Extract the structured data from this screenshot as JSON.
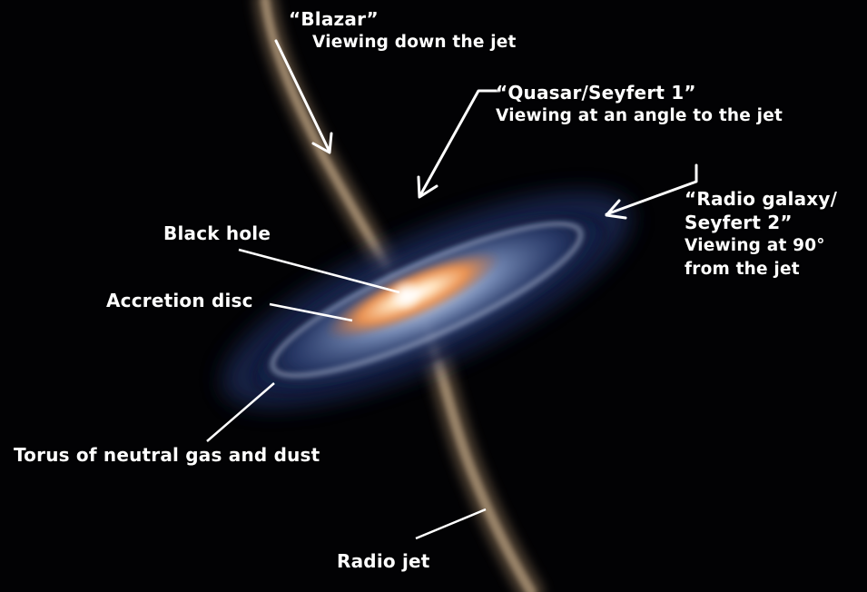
{
  "labels": {
    "blazar": {
      "title": "“Blazar”",
      "subtitle": "Viewing down the jet"
    },
    "quasar": {
      "title": "“Quasar/Seyfert 1”",
      "subtitle": "Viewing at an angle to the jet"
    },
    "radio_galaxy": {
      "title_line1": "“Radio galaxy/",
      "title_line2": "Seyfert 2”",
      "subtitle_line1": "Viewing at 90°",
      "subtitle_line2": "from the jet"
    },
    "black_hole": "Black hole",
    "accretion_disc": "Accretion disc",
    "torus": "Torus of neutral gas and dust",
    "radio_jet": "Radio jet"
  },
  "colors": {
    "background": "#020204",
    "label_text": "#ffffff",
    "jet": "#b39a7e",
    "disc_hot": "#f4a05a",
    "torus": "#6d86b8"
  }
}
